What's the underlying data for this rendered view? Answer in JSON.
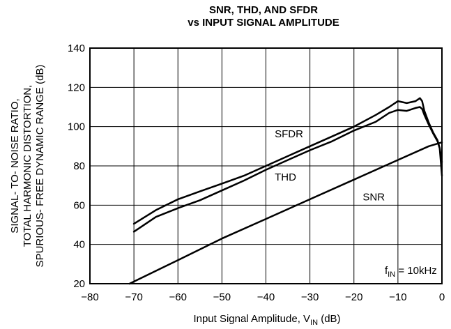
{
  "chart_data": {
    "type": "line",
    "title_line1": "SNR, THD, AND SFDR",
    "title_line2": "vs INPUT SIGNAL AMPLITUDE",
    "xlabel_main": "Input Signal Amplitude, V",
    "xlabel_sub": "IN",
    "xlabel_unit": " (dB)",
    "ylabel_lines": [
      "SIGNAL- TO- NOISE RATIO,",
      "TOTAL HARMONIC DISTORTION,",
      "SPURIOUS- FREE DYNAMIC RANGE (dB)"
    ],
    "xlim": [
      -80,
      0
    ],
    "ylim": [
      20,
      140
    ],
    "x_ticks": [
      "−80",
      "−70",
      "−60",
      "−50",
      "−40",
      "−30",
      "−20",
      "−10",
      "0"
    ],
    "x_tick_values": [
      -80,
      -70,
      -60,
      -50,
      -40,
      -30,
      -20,
      -10,
      0
    ],
    "y_ticks": [
      "20",
      "40",
      "60",
      "80",
      "100",
      "120",
      "140"
    ],
    "y_tick_values": [
      20,
      40,
      60,
      80,
      100,
      120,
      140
    ],
    "grid": true,
    "annotation_main": "f",
    "annotation_sub": "IN",
    "annotation_rest": " = 10kHz",
    "series": [
      {
        "name": "SFDR",
        "x": [
          -70,
          -65,
          -60,
          -55,
          -50,
          -45,
          -40,
          -35,
          -30,
          -25,
          -20,
          -15,
          -12,
          -10,
          -8,
          -6,
          -5,
          -4.5,
          -4,
          -3,
          -2,
          -1,
          -0.5,
          0
        ],
        "y": [
          50.5,
          57.5,
          63,
          67,
          71,
          75,
          80,
          85,
          90,
          95,
          100,
          106,
          110,
          113,
          112,
          113,
          114.5,
          113,
          108,
          102,
          97,
          93,
          89,
          82
        ]
      },
      {
        "name": "THD",
        "x": [
          -70,
          -65,
          -60,
          -55,
          -50,
          -45,
          -40,
          -35,
          -30,
          -25,
          -20,
          -15,
          -12,
          -10,
          -8,
          -6,
          -5,
          -4.5,
          -4,
          -3,
          -2,
          -1,
          -0.5,
          0
        ],
        "y": [
          46.5,
          54,
          58.5,
          62.5,
          67.5,
          72.5,
          78,
          83,
          88,
          92.5,
          98,
          102.5,
          107,
          108.5,
          108,
          109.5,
          110,
          109,
          106,
          101,
          96.5,
          92.5,
          89,
          75
        ]
      },
      {
        "name": "SNR",
        "x": [
          -71,
          -60,
          -50,
          -40,
          -30,
          -20,
          -10,
          -3,
          0
        ],
        "y": [
          20,
          32,
          43,
          53,
          63,
          73,
          83,
          90,
          92
        ]
      }
    ]
  }
}
